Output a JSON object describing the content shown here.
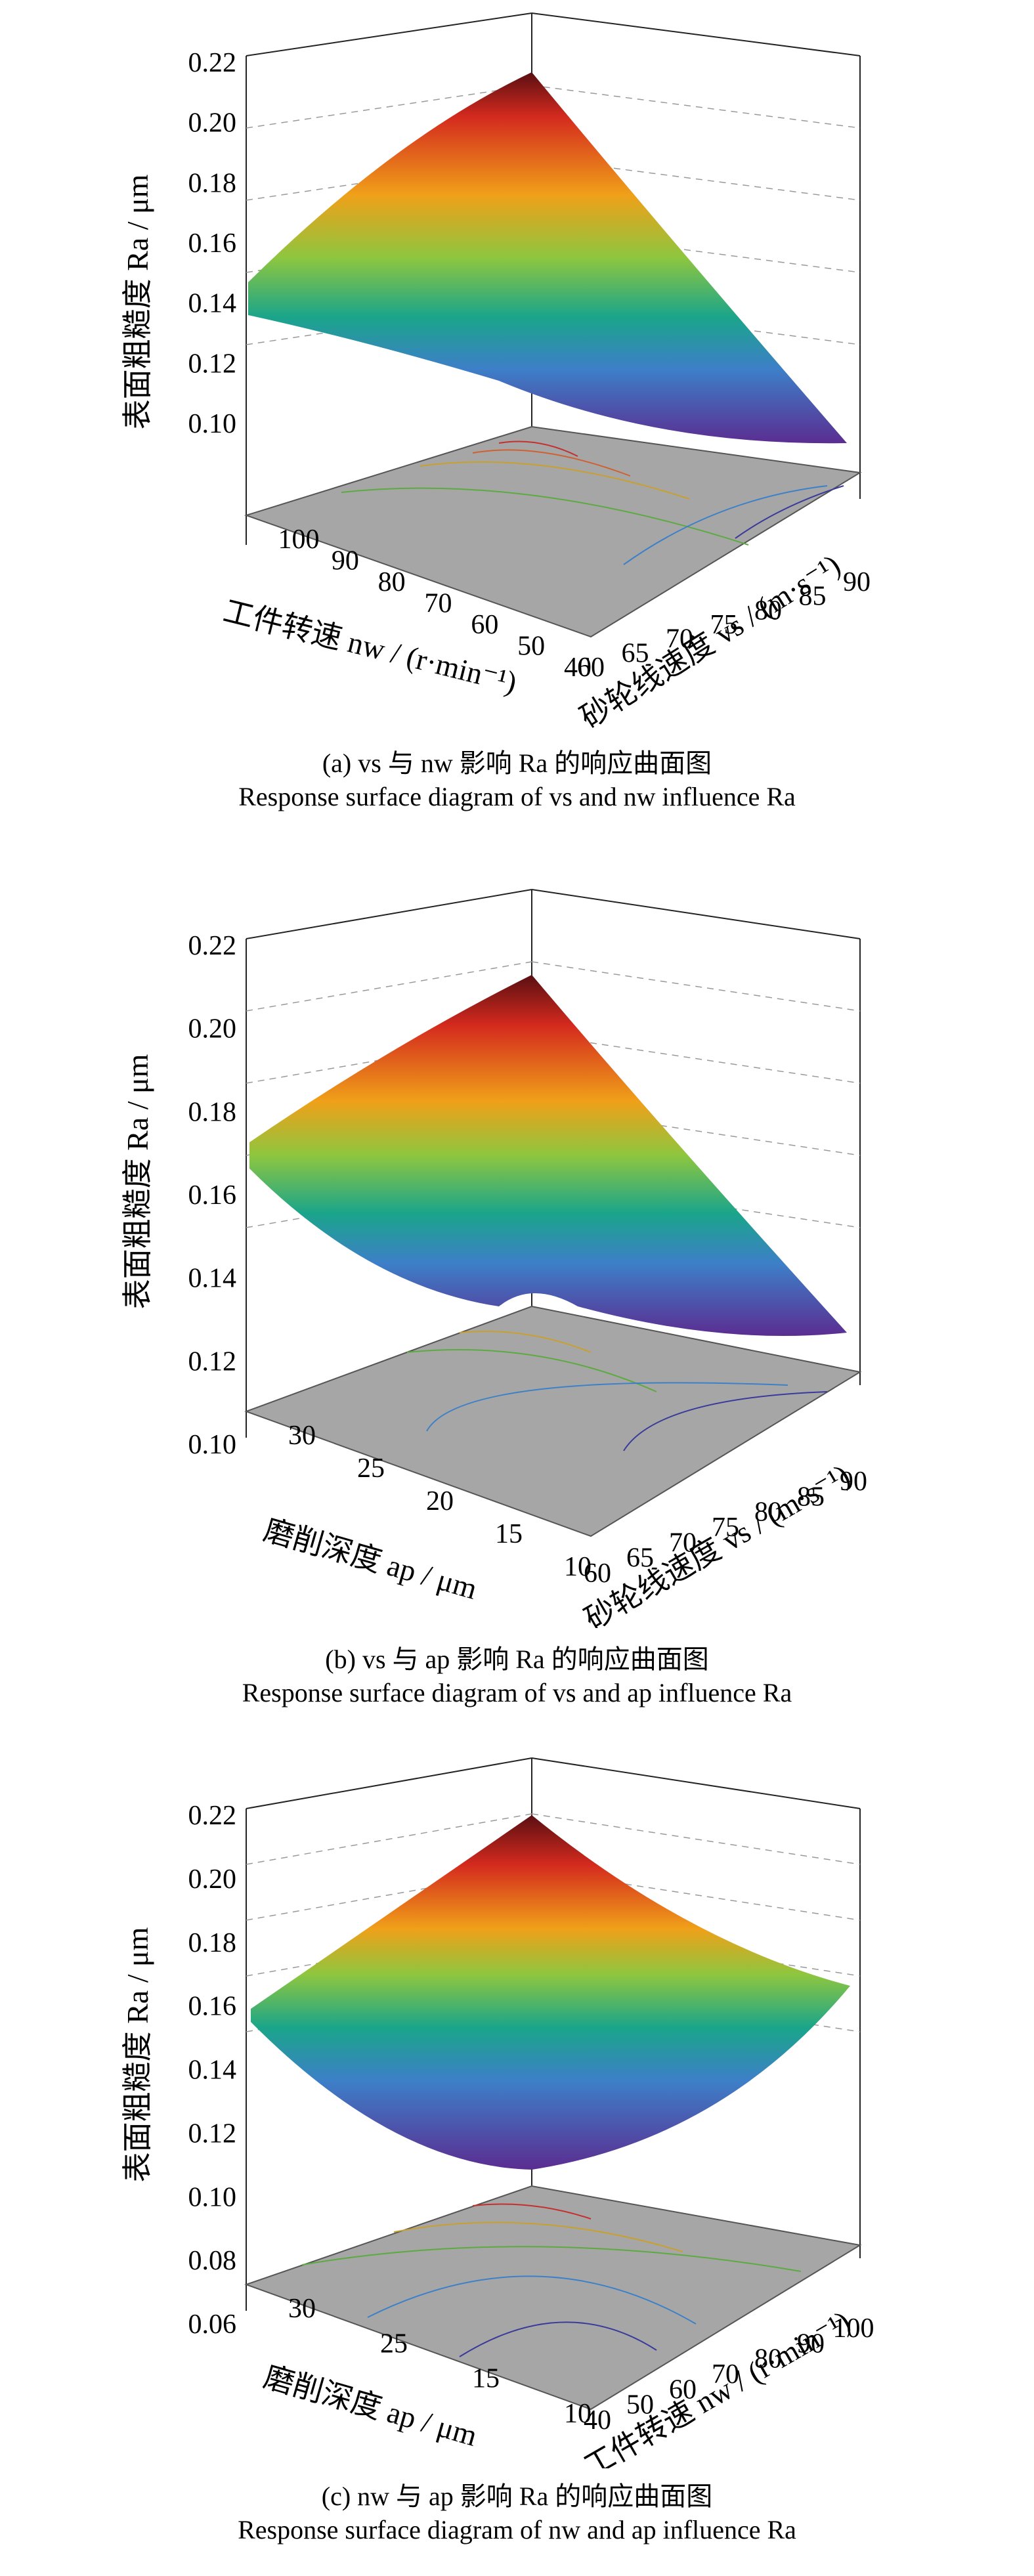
{
  "panels": [
    {
      "caption_cn": "(a) vs 与 nw 影响 Ra 的响应曲面图",
      "caption_en": "Response surface diagram of vs and nw influence Ra",
      "chart_data": {
        "type": "surface3d",
        "zlabel": "表面粗糙度 Ra / μm",
        "xlabel": "砂轮线速度 vs / (m·s⁻¹)",
        "ylabel": "工件转速 nw / (r·min⁻¹)",
        "zticks": [
          "0.22",
          "0.20",
          "0.18",
          "0.16",
          "0.14",
          "0.12",
          "0.10"
        ],
        "xticks": [
          "60",
          "65",
          "70",
          "75",
          "80",
          "85",
          "90"
        ],
        "yticks": [
          "40",
          "50",
          "60",
          "70",
          "80",
          "90",
          "100"
        ],
        "zlim": [
          0.1,
          0.22
        ],
        "corners": {
          "left": 0.153,
          "top": 0.212,
          "bottom": 0.128,
          "right": 0.113
        }
      }
    },
    {
      "caption_cn": "(b) vs 与 ap 影响 Ra 的响应曲面图",
      "caption_en": "Response surface diagram of vs and ap influence Ra",
      "chart_data": {
        "type": "surface3d",
        "zlabel": "表面粗糙度 Ra / μm",
        "xlabel": "砂轮线速度 vs / (m·s⁻¹)",
        "ylabel": "磨削深度 ap / μm",
        "zticks": [
          "0.22",
          "0.20",
          "0.18",
          "0.16",
          "0.14",
          "0.12",
          "0.10"
        ],
        "xticks": [
          "60",
          "65",
          "70",
          "75",
          "80",
          "85",
          "90"
        ],
        "yticks": [
          "10",
          "15",
          "20",
          "25",
          "30"
        ],
        "zlim": [
          0.1,
          0.22
        ],
        "corners": {
          "left": 0.155,
          "top": 0.207,
          "bottom": 0.137,
          "right": 0.13
        }
      }
    },
    {
      "caption_cn": "(c) nw 与 ap 影响 Ra 的响应曲面图",
      "caption_en": "Response surface diagram of nw and ap influence Ra",
      "chart_data": {
        "type": "surface3d",
        "zlabel": "表面粗糙度 Ra / μm",
        "xlabel": "工件转速 nw / (r·min⁻¹)",
        "ylabel": "磨削深度 ap / μm",
        "zticks": [
          "0.22",
          "0.20",
          "0.18",
          "0.16",
          "0.14",
          "0.12",
          "0.10",
          "0.08",
          "0.06"
        ],
        "xticks": [
          "40",
          "50",
          "60",
          "70",
          "80",
          "90",
          "100"
        ],
        "yticks": [
          "10",
          "15",
          "25",
          "30"
        ],
        "zlim": [
          0.06,
          0.22
        ],
        "corners": {
          "left": 0.149,
          "top": 0.222,
          "bottom": 0.098,
          "right": 0.166
        }
      }
    }
  ]
}
